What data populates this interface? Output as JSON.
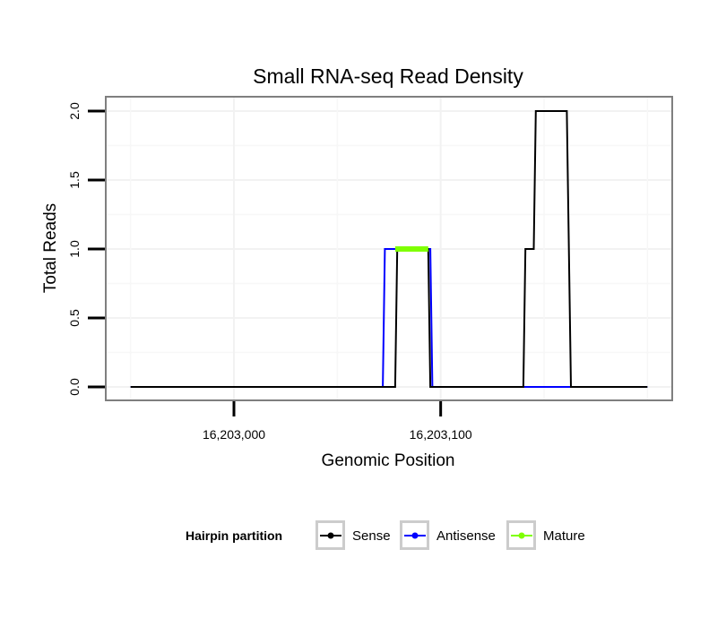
{
  "chart_data": {
    "type": "line",
    "title": "Small RNA-seq Read Density",
    "xlabel": "Genomic Position",
    "ylabel": "Total Reads",
    "xlim": [
      16202938,
      16203212
    ],
    "ylim": [
      0,
      2
    ],
    "x_ticks": [
      {
        "value": 16203000,
        "label": "16,203,000"
      },
      {
        "value": 16203100,
        "label": "16,203,100"
      }
    ],
    "y_ticks": [
      {
        "value": 0.0,
        "label": "0.0"
      },
      {
        "value": 0.5,
        "label": "0.5"
      },
      {
        "value": 1.0,
        "label": "1.0"
      },
      {
        "value": 1.5,
        "label": "1.5"
      },
      {
        "value": 2.0,
        "label": "2.0"
      }
    ],
    "grid": true,
    "legend": {
      "title": "Hairpin partition",
      "position": "bottom",
      "entries": [
        "Sense",
        "Antisense",
        "Mature"
      ]
    },
    "series": [
      {
        "name": "Antisense",
        "color": "#0000ff",
        "x": [
          16202950,
          16203072,
          16203073,
          16203095,
          16203096,
          16203200
        ],
        "y": [
          0,
          0,
          1,
          1,
          0,
          0
        ]
      },
      {
        "name": "Sense",
        "color": "#000000",
        "x": [
          16202950,
          16203078,
          16203079,
          16203094,
          16203095,
          16203140,
          16203141,
          16203145,
          16203146,
          16203161,
          16203163,
          16203200
        ],
        "y": [
          0,
          0,
          1,
          1,
          0,
          0,
          1,
          1,
          2,
          2,
          0,
          0
        ]
      },
      {
        "name": "Mature",
        "color": "#7fff00",
        "x": [
          16203078,
          16203094
        ],
        "y": [
          1,
          1
        ]
      }
    ]
  }
}
